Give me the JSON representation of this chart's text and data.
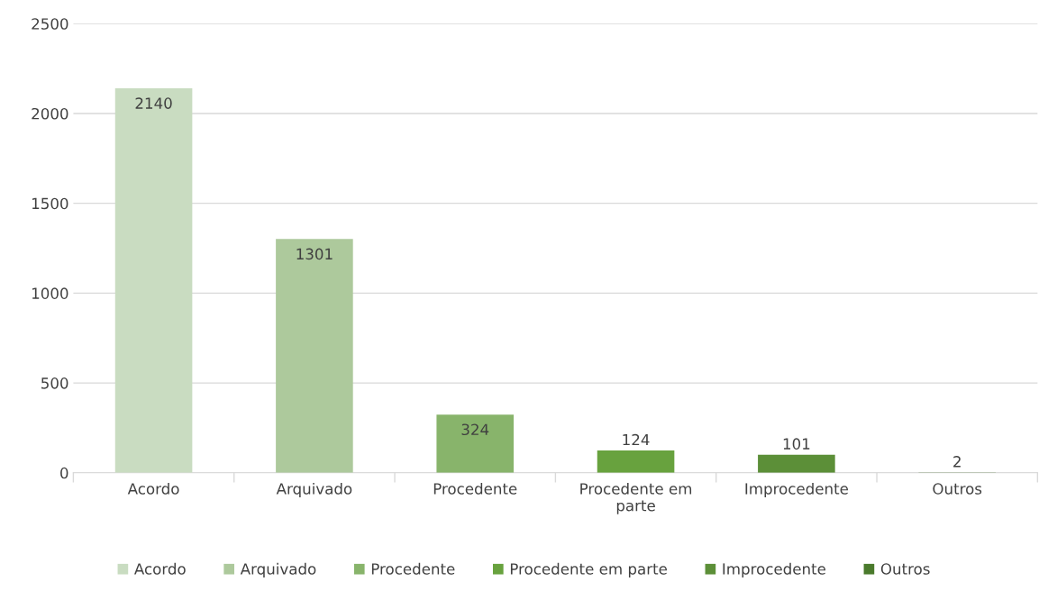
{
  "chart_data": {
    "type": "bar",
    "categories": [
      "Acordo",
      "Arquivado",
      "Procedente",
      "Procedente em parte",
      "Improcedente",
      "Outros"
    ],
    "series": [
      {
        "name": "Acordo",
        "color": "#c9dcc1",
        "values": [
          2140,
          null,
          null,
          null,
          null,
          null
        ]
      },
      {
        "name": "Arquivado",
        "color": "#adc99c",
        "values": [
          null,
          1301,
          null,
          null,
          null,
          null
        ]
      },
      {
        "name": "Procedente",
        "color": "#88b46b",
        "values": [
          null,
          null,
          324,
          null,
          null,
          null
        ]
      },
      {
        "name": "Procedente em parte",
        "color": "#68a23e",
        "values": [
          null,
          null,
          null,
          124,
          null,
          null
        ]
      },
      {
        "name": "Improcedente",
        "color": "#5c8f38",
        "values": [
          null,
          null,
          null,
          null,
          101,
          null
        ]
      },
      {
        "name": "Outros",
        "color": "#4a7a2c",
        "values": [
          null,
          null,
          null,
          null,
          null,
          2
        ]
      }
    ],
    "ylim": [
      0,
      2500
    ],
    "yticks": [
      0,
      500,
      1000,
      1500,
      2000,
      2500
    ],
    "grid": "y",
    "legend": "bottom",
    "data_labels": true
  }
}
